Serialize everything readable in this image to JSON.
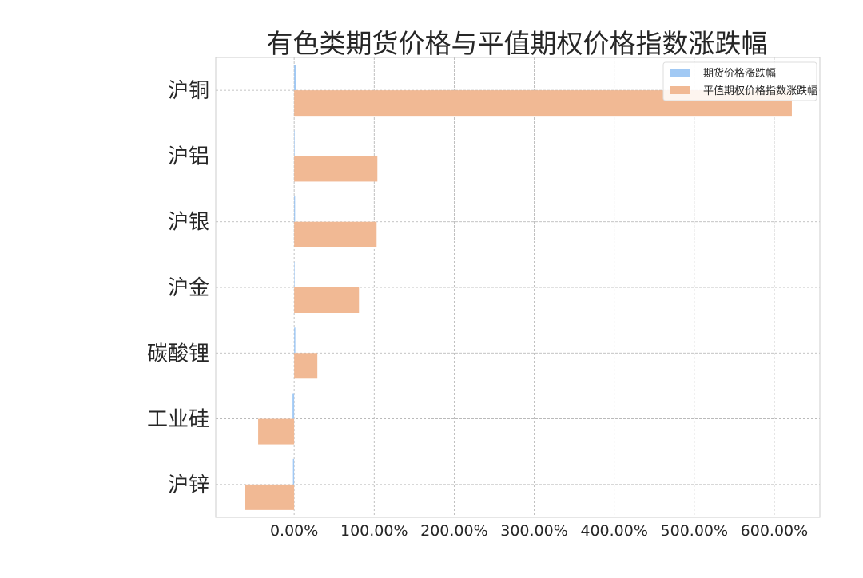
{
  "chart_data": {
    "type": "bar",
    "orientation": "horizontal",
    "title": "有色类期货价格与平值期权价格指数涨跌幅",
    "xlabel": "",
    "ylabel": "",
    "categories": [
      "沪铜",
      "沪铝",
      "沪银",
      "沪金",
      "碳酸锂",
      "工业硅",
      "沪锌"
    ],
    "series": [
      {
        "name": "期货价格涨跌幅",
        "color": "#a1c9f4",
        "values": [
          2,
          0.5,
          1.2,
          0.3,
          1.5,
          -2,
          -1.5
        ]
      },
      {
        "name": "平值期权价格指数涨跌幅",
        "color": "#f1b994",
        "values": [
          622,
          104,
          103,
          81,
          29,
          -45,
          -62
        ]
      }
    ],
    "xlim": [
      -98,
      657
    ],
    "xticks": [
      0,
      100,
      200,
      300,
      400,
      500,
      600
    ],
    "xtick_labels": [
      "0.00%",
      "100.00%",
      "200.00%",
      "300.00%",
      "400.00%",
      "500.00%",
      "600.00%"
    ],
    "grid": true,
    "legend_position": "top-right"
  }
}
